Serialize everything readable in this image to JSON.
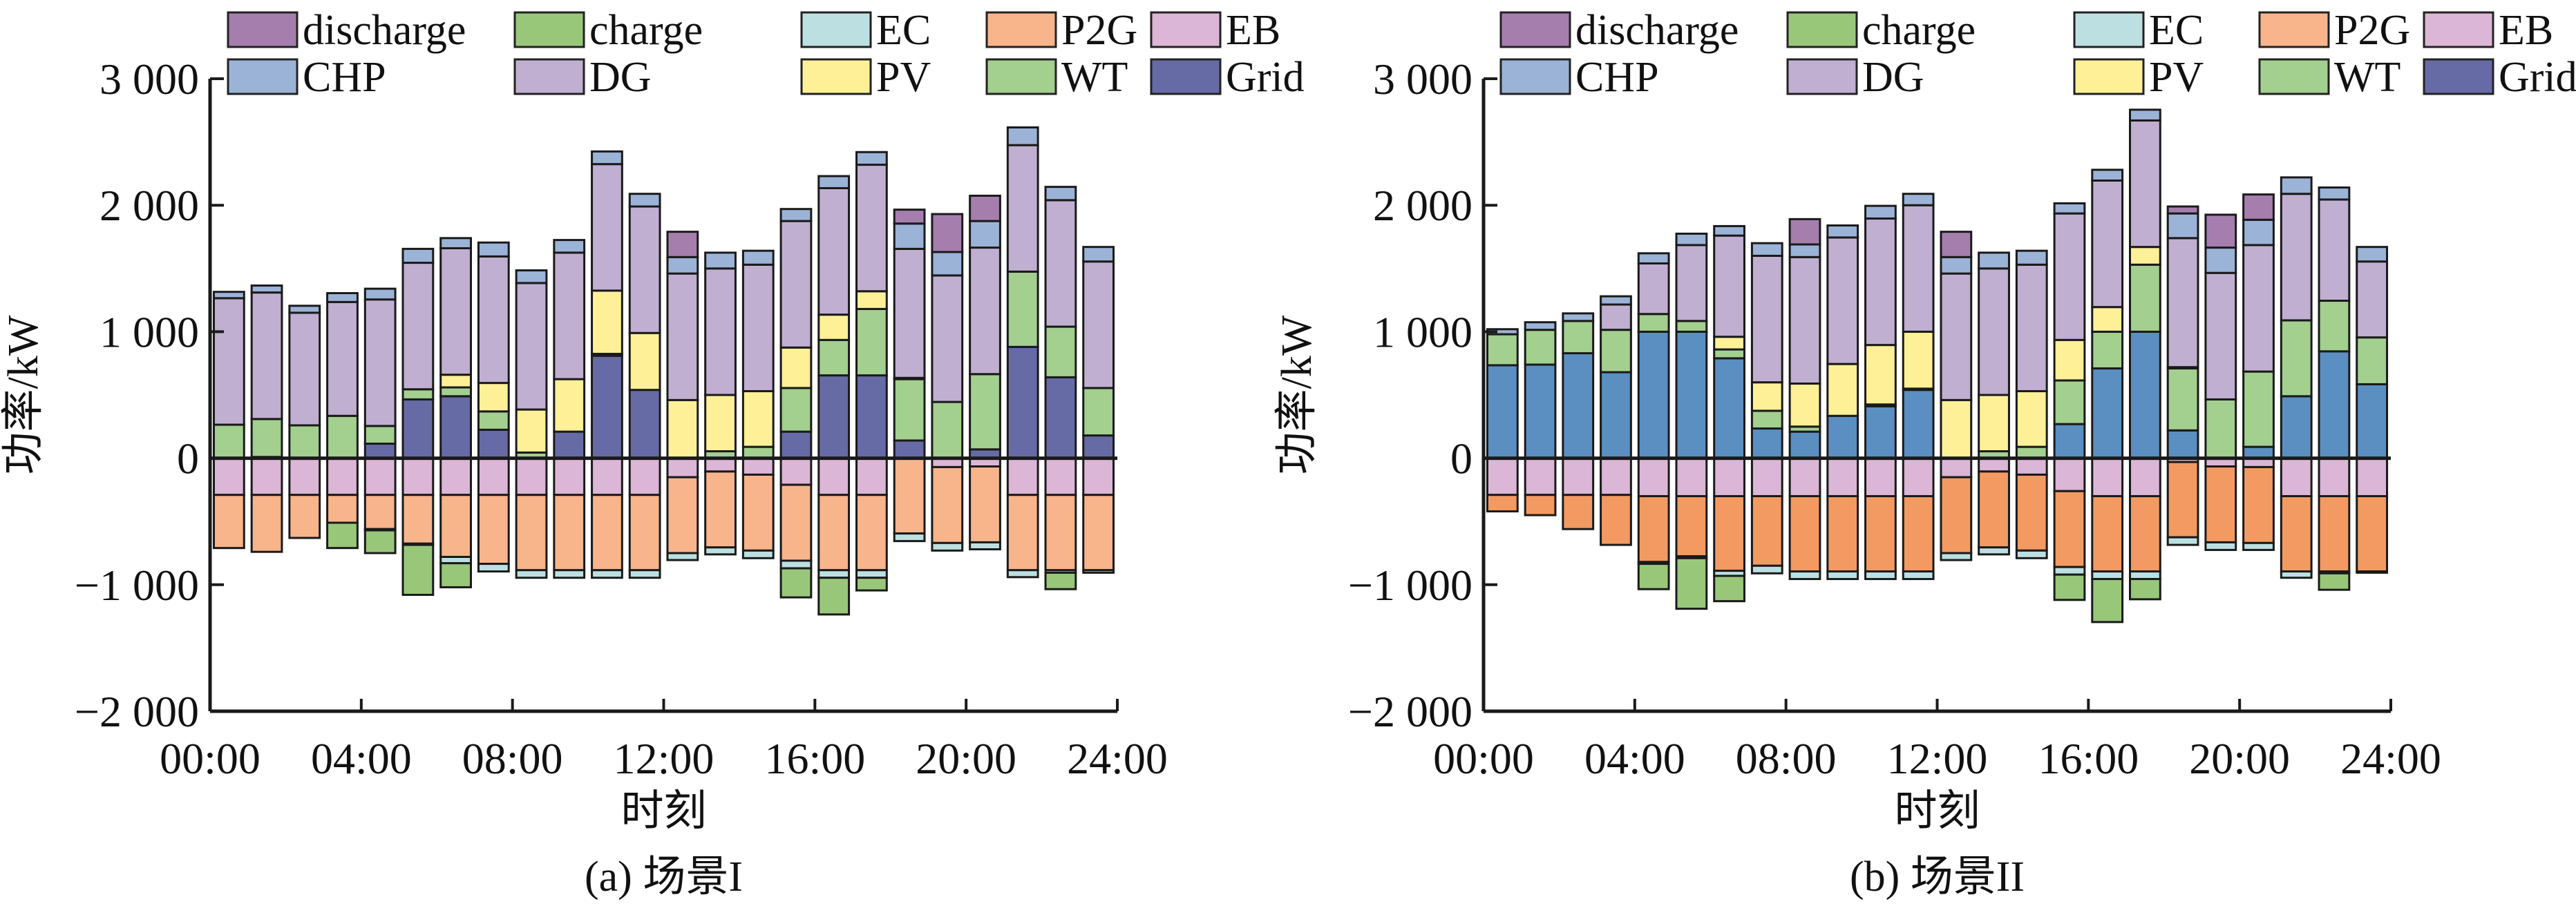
{
  "legend": [
    {
      "key": "discharge",
      "label": "discharge",
      "color": "#A67EAE"
    },
    {
      "key": "charge",
      "label": "charge",
      "color": "#99C77A"
    },
    {
      "key": "EC",
      "label": "EC",
      "color": "#BCE0E2"
    },
    {
      "key": "P2G",
      "label": "P2G",
      "color": "#F8B48B"
    },
    {
      "key": "EB",
      "label": "EB",
      "color": "#DCB6D6"
    },
    {
      "key": "CHP",
      "label": "CHP",
      "color": "#9CB3D8"
    },
    {
      "key": "DG",
      "label": "DG",
      "color": "#C1AFD1"
    },
    {
      "key": "PV",
      "label": "PV",
      "color": "#FEF097"
    },
    {
      "key": "WT",
      "label": "WT",
      "color": "#A3CF8F"
    },
    {
      "key": "Grid",
      "label": "Grid",
      "color": "#666BA6"
    }
  ],
  "chart_data": [
    {
      "type": "bar",
      "stacked": true,
      "title": "(a) 场景I",
      "xlabel": "时刻",
      "ylabel": "功率/kW",
      "ylim": [
        -2000,
        3000
      ],
      "yticks": [
        -2000,
        -1000,
        0,
        1000,
        2000,
        3000
      ],
      "ytick_labels": [
        "−2 000",
        "−1 000",
        "0",
        "1 000",
        "2 000",
        "3 000"
      ],
      "xticks": [
        "00:00",
        "04:00",
        "08:00",
        "12:00",
        "16:00",
        "20:00",
        "24:00"
      ],
      "hours": [
        1,
        2,
        3,
        4,
        5,
        6,
        7,
        8,
        9,
        10,
        11,
        12,
        13,
        14,
        15,
        16,
        17,
        18,
        19,
        20,
        21,
        22,
        23,
        24
      ],
      "colors": {
        "Grid": "#666BA6",
        "P2G": "#F8B48B"
      },
      "positive_order": [
        "Grid",
        "WT",
        "PV",
        "DG",
        "CHP",
        "discharge"
      ],
      "negative_order": [
        "EB",
        "P2G",
        "EC",
        "charge"
      ],
      "series": [
        {
          "name": "Grid",
          "values": [
            0,
            10,
            0,
            0,
            115,
            465,
            490,
            225,
            0,
            210,
            810,
            540,
            0,
            0,
            0,
            210,
            655,
            655,
            140,
            0,
            70,
            880,
            640,
            180
          ]
        },
        {
          "name": "WT",
          "values": [
            265,
            300,
            260,
            335,
            140,
            80,
            70,
            145,
            45,
            0,
            15,
            0,
            0,
            55,
            90,
            345,
            280,
            525,
            485,
            445,
            595,
            595,
            400,
            375
          ]
        },
        {
          "name": "PV",
          "values": [
            0,
            0,
            0,
            0,
            0,
            0,
            100,
            225,
            340,
            415,
            500,
            450,
            460,
            445,
            440,
            320,
            200,
            140,
            10,
            0,
            0,
            0,
            0,
            0
          ]
        },
        {
          "name": "DG",
          "values": [
            1000,
            1000,
            890,
            900,
            1000,
            1000,
            1000,
            1000,
            1000,
            1000,
            1000,
            1000,
            1000,
            1000,
            1000,
            1000,
            1000,
            1000,
            1020,
            1000,
            1000,
            1000,
            1000,
            1000
          ]
        },
        {
          "name": "CHP",
          "values": [
            50,
            55,
            55,
            70,
            85,
            110,
            80,
            110,
            100,
            100,
            100,
            100,
            130,
            125,
            110,
            95,
            95,
            100,
            200,
            185,
            210,
            140,
            105,
            115
          ]
        },
        {
          "name": "discharge",
          "values": [
            0,
            0,
            0,
            0,
            0,
            0,
            0,
            0,
            0,
            0,
            0,
            0,
            200,
            0,
            0,
            0,
            0,
            0,
            110,
            300,
            200,
            0,
            0,
            0
          ]
        },
        {
          "name": "EB",
          "values": [
            -290,
            -290,
            -290,
            -290,
            -290,
            -290,
            -290,
            -290,
            -290,
            -290,
            -290,
            -290,
            -150,
            -105,
            -130,
            -210,
            -290,
            -290,
            0,
            -70,
            -65,
            -290,
            -290,
            -290
          ]
        },
        {
          "name": "P2G",
          "values": [
            -420,
            -450,
            -340,
            -220,
            -270,
            -385,
            -490,
            -545,
            -595,
            -595,
            -595,
            -595,
            -600,
            -600,
            -600,
            -600,
            -595,
            -595,
            -595,
            -600,
            -600,
            -595,
            -595,
            -595
          ]
        },
        {
          "name": "EC",
          "values": [
            0,
            0,
            0,
            0,
            -10,
            -10,
            -50,
            -60,
            -60,
            -60,
            -60,
            -60,
            -55,
            -55,
            -60,
            -60,
            -60,
            -60,
            -60,
            -60,
            -55,
            -55,
            -20,
            -20
          ]
        },
        {
          "name": "charge",
          "values": [
            0,
            0,
            0,
            -200,
            -180,
            -395,
            -190,
            0,
            0,
            0,
            0,
            0,
            0,
            0,
            0,
            -230,
            -290,
            -100,
            0,
            0,
            0,
            0,
            -130,
            0
          ]
        }
      ]
    },
    {
      "type": "bar",
      "stacked": true,
      "title": "(b) 场景II",
      "xlabel": "时刻",
      "ylabel": "功率/kW",
      "ylim": [
        -2000,
        3000
      ],
      "yticks": [
        -2000,
        -1000,
        0,
        1000,
        2000,
        3000
      ],
      "ytick_labels": [
        "−2 000",
        "−1 000",
        "0",
        "1 000",
        "2 000",
        "3 000"
      ],
      "xticks": [
        "00:00",
        "04:00",
        "08:00",
        "12:00",
        "16:00",
        "20:00",
        "24:00"
      ],
      "hours": [
        1,
        2,
        3,
        4,
        5,
        6,
        7,
        8,
        9,
        10,
        11,
        12,
        13,
        14,
        15,
        16,
        17,
        18,
        19,
        20,
        21,
        22,
        23,
        24
      ],
      "colors": {
        "Grid": "#5B8FC2",
        "P2G": "#F39A62"
      },
      "positive_order": [
        "Grid",
        "WT",
        "PV",
        "DG",
        "CHP",
        "discharge"
      ],
      "negative_order": [
        "EB",
        "P2G",
        "EC",
        "charge"
      ],
      "series": [
        {
          "name": "Grid",
          "values": [
            735,
            740,
            830,
            680,
            1000,
            1000,
            790,
            235,
            210,
            335,
            410,
            540,
            0,
            0,
            0,
            270,
            710,
            1000,
            220,
            0,
            90,
            490,
            845,
            585
          ]
        },
        {
          "name": "WT",
          "values": [
            245,
            275,
            255,
            335,
            140,
            85,
            70,
            140,
            40,
            0,
            15,
            10,
            0,
            55,
            90,
            345,
            290,
            530,
            490,
            465,
            595,
            600,
            400,
            370
          ]
        },
        {
          "name": "PV",
          "values": [
            0,
            0,
            0,
            0,
            0,
            0,
            100,
            225,
            340,
            410,
            470,
            450,
            460,
            445,
            440,
            320,
            195,
            140,
            10,
            0,
            0,
            0,
            0,
            0
          ]
        },
        {
          "name": "DG",
          "values": [
            0,
            0,
            0,
            200,
            400,
            600,
            800,
            1000,
            1000,
            1000,
            1000,
            1000,
            1000,
            1000,
            1000,
            1000,
            1000,
            1000,
            1020,
            1000,
            1000,
            1000,
            800,
            600
          ]
        },
        {
          "name": "CHP",
          "values": [
            40,
            60,
            60,
            65,
            80,
            90,
            75,
            100,
            100,
            95,
            100,
            90,
            130,
            125,
            110,
            80,
            85,
            85,
            195,
            200,
            200,
            130,
            95,
            115
          ]
        },
        {
          "name": "discharge",
          "values": [
            0,
            0,
            0,
            0,
            0,
            0,
            0,
            0,
            200,
            0,
            0,
            0,
            200,
            0,
            0,
            0,
            0,
            0,
            55,
            260,
            200,
            0,
            0,
            0
          ]
        },
        {
          "name": "EB",
          "values": [
            -290,
            -290,
            -290,
            -290,
            -300,
            -300,
            -300,
            -300,
            -300,
            -300,
            -300,
            -300,
            -150,
            -105,
            -130,
            -260,
            -300,
            -300,
            -30,
            -65,
            -70,
            -300,
            -300,
            -300
          ]
        },
        {
          "name": "P2G",
          "values": [
            -130,
            -160,
            -270,
            -395,
            -520,
            -475,
            -590,
            -550,
            -595,
            -595,
            -595,
            -595,
            -600,
            -600,
            -600,
            -600,
            -595,
            -595,
            -595,
            -600,
            -600,
            -595,
            -595,
            -595
          ]
        },
        {
          "name": "EC",
          "values": [
            0,
            0,
            0,
            0,
            -15,
            -15,
            -40,
            -60,
            -60,
            -60,
            -60,
            -60,
            -55,
            -55,
            -60,
            -60,
            -60,
            -60,
            -60,
            -60,
            -55,
            -50,
            -15,
            -10
          ]
        },
        {
          "name": "charge",
          "values": [
            0,
            0,
            0,
            0,
            -200,
            -400,
            -200,
            0,
            0,
            0,
            0,
            0,
            0,
            0,
            0,
            -200,
            -340,
            -160,
            0,
            0,
            0,
            0,
            -130,
            0
          ]
        }
      ]
    }
  ]
}
